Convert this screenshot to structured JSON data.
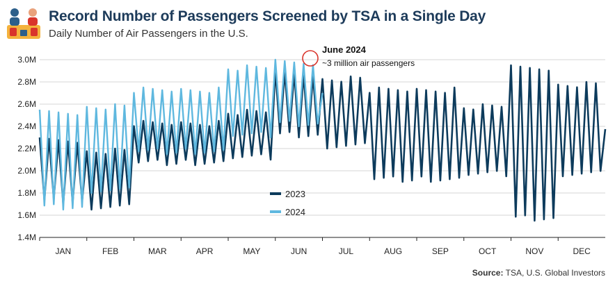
{
  "header": {
    "title": "Record Number of Passengers Screened by TSA in a Single Day",
    "subtitle": "Daily Number of Air Passengers in the U.S."
  },
  "logo_icon": "airport-security-checkpoint-icon",
  "source": {
    "label": "Source:",
    "text": "TSA, U.S. Global Investors"
  },
  "annotation": {
    "title": "June 2024",
    "text": "~3 million air passengers"
  },
  "colors": {
    "series_2023": "#0d3b5c",
    "series_2024": "#5fb8df",
    "highlight": "#d9342b",
    "title": "#1d3b5a"
  },
  "chart_data": {
    "type": "line",
    "title": "Record Number of Passengers Screened by TSA in a Single Day",
    "subtitle": "Daily Number of Air Passengers in the U.S.",
    "xlabel": "",
    "ylabel": "",
    "y_unit": "millions of passengers",
    "ylim": [
      1.4,
      3.0
    ],
    "y_ticks": [
      "1.4M",
      "1.6M",
      "1.8M",
      "2.0M",
      "2.2M",
      "2.4M",
      "2.6M",
      "2.8M",
      "3.0M"
    ],
    "y_tick_values": [
      1.4,
      1.6,
      1.8,
      2.0,
      2.2,
      2.4,
      2.6,
      2.8,
      3.0
    ],
    "x_ticks": [
      "JAN",
      "FEB",
      "MAR",
      "APR",
      "MAY",
      "JUN",
      "JUL",
      "AUG",
      "SEP",
      "OCT",
      "NOV",
      "DEC"
    ],
    "grid": "horizontal",
    "legend_position": "center-left",
    "series": [
      {
        "name": "2023",
        "color": "#0d3b5c",
        "note": "daily values summarized as weekly [trough, peak] ranges by month",
        "months": [
          {
            "month": "JAN",
            "low": 1.7,
            "high": 2.3
          },
          {
            "month": "FEB",
            "low": 1.65,
            "high": 2.2
          },
          {
            "month": "MAR",
            "low": 2.05,
            "high": 2.45
          },
          {
            "month": "APR",
            "low": 2.05,
            "high": 2.45
          },
          {
            "month": "MAY",
            "low": 2.1,
            "high": 2.55
          },
          {
            "month": "JUN",
            "low": 2.3,
            "high": 2.9
          },
          {
            "month": "JUL",
            "low": 2.2,
            "high": 2.85
          },
          {
            "month": "AUG",
            "low": 1.9,
            "high": 2.75
          },
          {
            "month": "SEP",
            "low": 1.9,
            "high": 2.75
          },
          {
            "month": "OCT",
            "low": 1.95,
            "high": 2.6
          },
          {
            "month": "NOV",
            "low": 1.55,
            "high": 2.95
          },
          {
            "month": "DEC",
            "low": 1.95,
            "high": 2.8
          }
        ]
      },
      {
        "name": "2024",
        "color": "#5fb8df",
        "months": [
          {
            "month": "JAN",
            "low": 1.65,
            "high": 2.55
          },
          {
            "month": "FEB",
            "low": 1.8,
            "high": 2.6
          },
          {
            "month": "MAR",
            "low": 2.15,
            "high": 2.75
          },
          {
            "month": "APR",
            "low": 2.15,
            "high": 2.75
          },
          {
            "month": "MAY",
            "low": 2.3,
            "high": 2.95
          },
          {
            "month": "JUN",
            "low": 2.4,
            "high": 3.0
          }
        ]
      }
    ],
    "annotations": [
      {
        "x": "JUN 2024",
        "y": 3.0,
        "title": "June 2024",
        "text": "~3 million air passengers"
      }
    ]
  }
}
